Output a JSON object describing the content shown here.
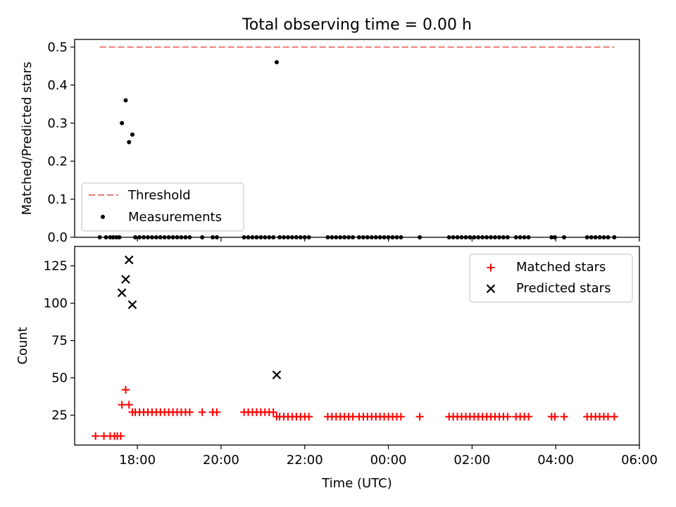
{
  "title": "Total observing time = 0.00 h",
  "chart_data": [
    {
      "type": "scatter",
      "ylabel": "Matched/Predicted stars",
      "ylim": [
        0,
        0.52
      ],
      "yticks": [
        "0.0",
        "0.1",
        "0.2",
        "0.3",
        "0.4",
        "0.5"
      ],
      "ytick_values": [
        0.0,
        0.1,
        0.2,
        0.3,
        0.4,
        0.5
      ],
      "x_axis": "time_utc_hours",
      "xlim": [
        16.5,
        30.0
      ],
      "threshold": {
        "name": "Threshold",
        "value": 0.5,
        "x_range": [
          17.1,
          29.4
        ],
        "color": "#f08080"
      },
      "measurements": {
        "name": "Measurements",
        "color": "#000000",
        "points": [
          [
            17.63,
            0.3
          ],
          [
            17.72,
            0.36
          ],
          [
            17.8,
            0.25
          ],
          [
            17.88,
            0.27
          ],
          [
            21.33,
            0.46
          ],
          [
            17.1,
            0.0
          ],
          [
            17.25,
            0.0
          ],
          [
            17.35,
            0.0
          ],
          [
            17.42,
            0.0
          ],
          [
            17.5,
            0.0
          ],
          [
            17.57,
            0.0
          ],
          [
            17.95,
            0.0
          ],
          [
            18.05,
            0.0
          ],
          [
            18.15,
            0.0
          ],
          [
            18.25,
            0.0
          ],
          [
            18.35,
            0.0
          ],
          [
            18.45,
            0.0
          ],
          [
            18.55,
            0.0
          ],
          [
            18.65,
            0.0
          ],
          [
            18.75,
            0.0
          ],
          [
            18.85,
            0.0
          ],
          [
            18.95,
            0.0
          ],
          [
            19.05,
            0.0
          ],
          [
            19.15,
            0.0
          ],
          [
            19.25,
            0.0
          ],
          [
            19.55,
            0.0
          ],
          [
            19.8,
            0.0
          ],
          [
            19.9,
            0.0
          ],
          [
            20.55,
            0.0
          ],
          [
            20.65,
            0.0
          ],
          [
            20.75,
            0.0
          ],
          [
            20.85,
            0.0
          ],
          [
            20.95,
            0.0
          ],
          [
            21.05,
            0.0
          ],
          [
            21.15,
            0.0
          ],
          [
            21.25,
            0.0
          ],
          [
            21.4,
            0.0
          ],
          [
            21.5,
            0.0
          ],
          [
            21.6,
            0.0
          ],
          [
            21.7,
            0.0
          ],
          [
            21.8,
            0.0
          ],
          [
            21.9,
            0.0
          ],
          [
            22.0,
            0.0
          ],
          [
            22.1,
            0.0
          ],
          [
            22.55,
            0.0
          ],
          [
            22.65,
            0.0
          ],
          [
            22.75,
            0.0
          ],
          [
            22.85,
            0.0
          ],
          [
            22.95,
            0.0
          ],
          [
            23.05,
            0.0
          ],
          [
            23.15,
            0.0
          ],
          [
            23.3,
            0.0
          ],
          [
            23.4,
            0.0
          ],
          [
            23.5,
            0.0
          ],
          [
            23.6,
            0.0
          ],
          [
            23.7,
            0.0
          ],
          [
            23.8,
            0.0
          ],
          [
            23.9,
            0.0
          ],
          [
            24.0,
            0.0
          ],
          [
            24.1,
            0.0
          ],
          [
            24.2,
            0.0
          ],
          [
            24.3,
            0.0
          ],
          [
            24.75,
            0.0
          ],
          [
            25.45,
            0.0
          ],
          [
            25.55,
            0.0
          ],
          [
            25.65,
            0.0
          ],
          [
            25.75,
            0.0
          ],
          [
            25.85,
            0.0
          ],
          [
            25.95,
            0.0
          ],
          [
            26.05,
            0.0
          ],
          [
            26.15,
            0.0
          ],
          [
            26.25,
            0.0
          ],
          [
            26.35,
            0.0
          ],
          [
            26.45,
            0.0
          ],
          [
            26.55,
            0.0
          ],
          [
            26.65,
            0.0
          ],
          [
            26.75,
            0.0
          ],
          [
            26.85,
            0.0
          ],
          [
            27.05,
            0.0
          ],
          [
            27.15,
            0.0
          ],
          [
            27.25,
            0.0
          ],
          [
            27.35,
            0.0
          ],
          [
            27.9,
            0.0
          ],
          [
            27.98,
            0.0
          ],
          [
            28.2,
            0.0
          ],
          [
            28.75,
            0.0
          ],
          [
            28.85,
            0.0
          ],
          [
            28.95,
            0.0
          ],
          [
            29.05,
            0.0
          ],
          [
            29.15,
            0.0
          ],
          [
            29.25,
            0.0
          ],
          [
            29.4,
            0.0
          ]
        ]
      },
      "legend": {
        "placement": "lower-left",
        "entries": [
          "Threshold",
          "Measurements"
        ]
      }
    },
    {
      "type": "scatter",
      "ylabel": "Count",
      "xlabel": "Time (UTC)",
      "ylim": [
        5,
        138
      ],
      "yticks": [
        "25",
        "50",
        "75",
        "100",
        "125"
      ],
      "ytick_values": [
        25,
        50,
        75,
        100,
        125
      ],
      "xlim": [
        16.5,
        30.0
      ],
      "xticks": [
        "18:00",
        "20:00",
        "22:00",
        "00:00",
        "02:00",
        "04:00",
        "06:00"
      ],
      "xtick_values": [
        18,
        20,
        22,
        24,
        26,
        28,
        30
      ],
      "series": [
        {
          "name": "Matched stars",
          "marker": "+",
          "color": "#ff0000",
          "points": [
            [
              17.0,
              11
            ],
            [
              17.2,
              11
            ],
            [
              17.35,
              11
            ],
            [
              17.45,
              11
            ],
            [
              17.52,
              11
            ],
            [
              17.6,
              11
            ],
            [
              17.63,
              32
            ],
            [
              17.72,
              42
            ],
            [
              17.8,
              32
            ],
            [
              17.88,
              27
            ],
            [
              17.95,
              27
            ],
            [
              18.05,
              27
            ],
            [
              18.15,
              27
            ],
            [
              18.25,
              27
            ],
            [
              18.35,
              27
            ],
            [
              18.45,
              27
            ],
            [
              18.55,
              27
            ],
            [
              18.65,
              27
            ],
            [
              18.75,
              27
            ],
            [
              18.85,
              27
            ],
            [
              18.95,
              27
            ],
            [
              19.05,
              27
            ],
            [
              19.15,
              27
            ],
            [
              19.25,
              27
            ],
            [
              19.55,
              27
            ],
            [
              19.8,
              27
            ],
            [
              19.9,
              27
            ],
            [
              20.55,
              27
            ],
            [
              20.65,
              27
            ],
            [
              20.75,
              27
            ],
            [
              20.85,
              27
            ],
            [
              20.95,
              27
            ],
            [
              21.05,
              27
            ],
            [
              21.15,
              27
            ],
            [
              21.25,
              27
            ],
            [
              21.33,
              24
            ],
            [
              21.4,
              24
            ],
            [
              21.5,
              24
            ],
            [
              21.6,
              24
            ],
            [
              21.7,
              24
            ],
            [
              21.8,
              24
            ],
            [
              21.9,
              24
            ],
            [
              22.0,
              24
            ],
            [
              22.1,
              24
            ],
            [
              22.55,
              24
            ],
            [
              22.65,
              24
            ],
            [
              22.75,
              24
            ],
            [
              22.85,
              24
            ],
            [
              22.95,
              24
            ],
            [
              23.05,
              24
            ],
            [
              23.15,
              24
            ],
            [
              23.3,
              24
            ],
            [
              23.4,
              24
            ],
            [
              23.5,
              24
            ],
            [
              23.6,
              24
            ],
            [
              23.7,
              24
            ],
            [
              23.8,
              24
            ],
            [
              23.9,
              24
            ],
            [
              24.0,
              24
            ],
            [
              24.1,
              24
            ],
            [
              24.2,
              24
            ],
            [
              24.3,
              24
            ],
            [
              24.75,
              24
            ],
            [
              25.45,
              24
            ],
            [
              25.55,
              24
            ],
            [
              25.65,
              24
            ],
            [
              25.75,
              24
            ],
            [
              25.85,
              24
            ],
            [
              25.95,
              24
            ],
            [
              26.05,
              24
            ],
            [
              26.15,
              24
            ],
            [
              26.25,
              24
            ],
            [
              26.35,
              24
            ],
            [
              26.45,
              24
            ],
            [
              26.55,
              24
            ],
            [
              26.65,
              24
            ],
            [
              26.75,
              24
            ],
            [
              26.85,
              24
            ],
            [
              27.05,
              24
            ],
            [
              27.15,
              24
            ],
            [
              27.25,
              24
            ],
            [
              27.35,
              24
            ],
            [
              27.9,
              24
            ],
            [
              27.98,
              24
            ],
            [
              28.2,
              24
            ],
            [
              28.75,
              24
            ],
            [
              28.85,
              24
            ],
            [
              28.95,
              24
            ],
            [
              29.05,
              24
            ],
            [
              29.15,
              24
            ],
            [
              29.25,
              24
            ],
            [
              29.4,
              24
            ]
          ]
        },
        {
          "name": "Predicted stars",
          "marker": "x",
          "color": "#000000",
          "points": [
            [
              17.63,
              107
            ],
            [
              17.72,
              116
            ],
            [
              17.8,
              129
            ],
            [
              17.88,
              99
            ],
            [
              21.33,
              52
            ]
          ]
        }
      ],
      "legend": {
        "placement": "top-right",
        "entries": [
          "Matched stars",
          "Predicted stars"
        ]
      }
    }
  ]
}
